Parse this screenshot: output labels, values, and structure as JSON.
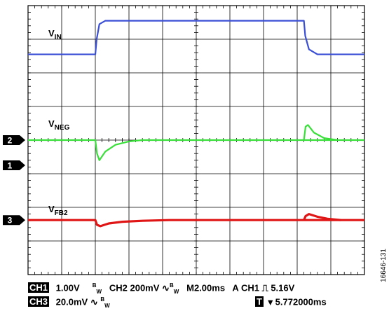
{
  "chart_data": {
    "type": "line",
    "grid": true,
    "divisions": {
      "x": 10,
      "y": 8
    },
    "series": [
      {
        "name": "VIN",
        "label_main": "V",
        "label_sub": "IN",
        "channel": "",
        "color": "#3a4fd6",
        "x": [
          0,
          2.0,
          2.04,
          2.12,
          2.3,
          8.2,
          8.24,
          8.35,
          8.6,
          10
        ],
        "y": [
          6.55,
          6.55,
          7.0,
          7.45,
          7.55,
          7.55,
          7.1,
          6.7,
          6.55,
          6.55
        ]
      },
      {
        "name": "VNEG",
        "label_main": "V",
        "label_sub": "NEG",
        "channel": "2",
        "color": "#39e039",
        "x": [
          0,
          2.0,
          2.05,
          2.12,
          2.3,
          2.6,
          3.0,
          3.4,
          10
        ],
        "y": [
          4.0,
          4.0,
          3.6,
          3.4,
          3.66,
          3.86,
          3.96,
          4.0,
          4.0
        ],
        "x2": [
          8.2,
          8.25,
          8.32,
          8.5,
          8.8,
          9.2
        ],
        "y2": [
          4.0,
          4.4,
          4.45,
          4.22,
          4.06,
          4.0
        ]
      },
      {
        "name": "VFB2",
        "label_main": "V",
        "label_sub": "FB2",
        "channel": "3",
        "color": "#e01515",
        "x": [
          0,
          2.0,
          2.05,
          2.15,
          2.4,
          2.8,
          3.4,
          4.2,
          10
        ],
        "y": [
          1.62,
          1.62,
          1.48,
          1.44,
          1.52,
          1.57,
          1.6,
          1.62,
          1.62
        ],
        "x2": [
          8.2,
          8.25,
          8.35,
          8.6,
          8.9,
          9.3
        ],
        "y2": [
          1.62,
          1.74,
          1.8,
          1.72,
          1.66,
          1.62
        ]
      }
    ],
    "markers": [
      {
        "label": "2",
        "level": 4.0
      },
      {
        "label": "1",
        "level": 3.25
      },
      {
        "label": "3",
        "level": 1.62
      }
    ]
  },
  "status": {
    "ch1_box": "CH1",
    "ch1_scale": "1.00V",
    "bw1": "B",
    "bw1_sub": "W",
    "ch2": "CH2 200mV",
    "ch2_sym": "∿",
    "bw2": "B",
    "bw2_sub": "W",
    "timebase": "M2.00ms",
    "trigger": "A CH1",
    "trigger_edge": "⎍",
    "trigger_level": "5.16V",
    "ch3_box": "CH3",
    "ch3_scale": "20.0mV",
    "ch3_sym": "∿",
    "bw3": "B",
    "bw3_sub": "W",
    "t_box": "T",
    "t_arrow": "▾",
    "t_offset": "5.772000ms"
  },
  "figure_id": "16646-131"
}
